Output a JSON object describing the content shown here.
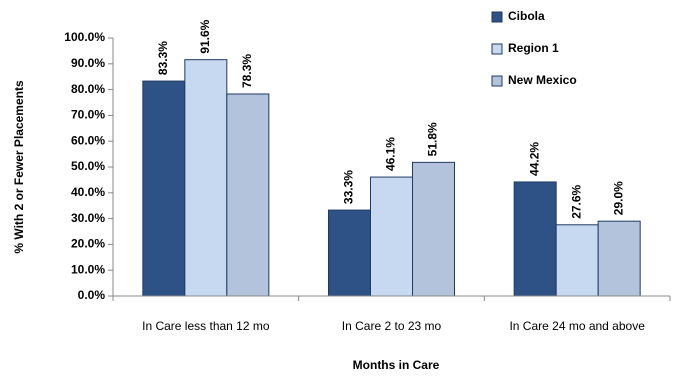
{
  "chart_data": {
    "type": "bar",
    "x_label": "Months in Care",
    "y_label": "% With 2 or Fewer Placements",
    "categories": [
      "In Care less than 12 mo",
      "In Care 2 to 23 mo",
      "In Care 24 mo and above"
    ],
    "series": [
      {
        "name": "Cibola",
        "color": "#2e5286",
        "values": [
          83.3,
          33.3,
          44.2
        ],
        "value_labels": [
          "83.3%",
          "33.3%",
          "44.2%"
        ]
      },
      {
        "name": "Region 1",
        "color": "#c6d9f1",
        "values": [
          91.6,
          46.1,
          27.6
        ],
        "value_labels": [
          "91.6%",
          "46.1%",
          "27.6%"
        ]
      },
      {
        "name": "New Mexico",
        "color": "#b4c3dc",
        "values": [
          78.3,
          51.8,
          29.0
        ],
        "value_labels": [
          "78.3%",
          "51.8%",
          "29.0%"
        ]
      }
    ],
    "ylim": [
      0,
      100
    ],
    "yticks": [
      {
        "value": 0,
        "label": "0.0%"
      },
      {
        "value": 10,
        "label": "10.0%"
      },
      {
        "value": 20,
        "label": "20.0%"
      },
      {
        "value": 30,
        "label": "30.0%"
      },
      {
        "value": 40,
        "label": "40.0%"
      },
      {
        "value": 50,
        "label": "50.0%"
      },
      {
        "value": 60,
        "label": "60.0%"
      },
      {
        "value": 70,
        "label": "70.0%"
      },
      {
        "value": 80,
        "label": "80.0%"
      },
      {
        "value": 90,
        "label": "90.0%"
      },
      {
        "value": 100,
        "label": "100.0%"
      }
    ],
    "legend": "top-right"
  }
}
